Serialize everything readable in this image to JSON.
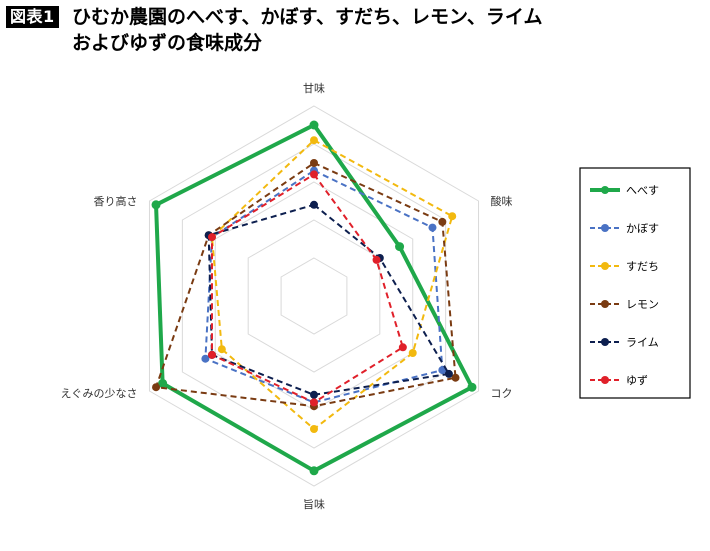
{
  "header": {
    "badge": "図表1",
    "title_line1": "ひむか農園のへべす、かぼす、すだち、レモン、ライム",
    "title_line2": "およびゆずの食味成分"
  },
  "chart_data": {
    "type": "radar",
    "axes": [
      "甘味",
      "酸味",
      "コク",
      "旨味",
      "えぐみの少なさ",
      "香り高さ"
    ],
    "rlim": [
      0,
      5
    ],
    "rings": 5,
    "grid": true,
    "legend_position": "right",
    "series": [
      {
        "name": "へべす",
        "color": "#1fa84a",
        "style": "solid",
        "values": [
          4.5,
          2.6,
          4.8,
          4.6,
          4.6,
          4.8
        ]
      },
      {
        "name": "かぼす",
        "color": "#4a72c4",
        "style": "dashed",
        "values": [
          3.3,
          3.6,
          3.9,
          2.8,
          3.3,
          3.1
        ]
      },
      {
        "name": "すだち",
        "color": "#f2b90f",
        "style": "dashed",
        "values": [
          4.1,
          4.2,
          3.0,
          3.5,
          2.8,
          3.1
        ]
      },
      {
        "name": "レモン",
        "color": "#7a3b12",
        "style": "dashed",
        "values": [
          3.5,
          3.9,
          4.3,
          2.9,
          4.8,
          3.2
        ]
      },
      {
        "name": "ライム",
        "color": "#0d1f4f",
        "style": "dashed",
        "values": [
          2.4,
          2.0,
          4.1,
          2.6,
          3.1,
          3.2
        ]
      },
      {
        "name": "ゆず",
        "color": "#e0202a",
        "style": "dashed",
        "values": [
          3.2,
          1.9,
          2.7,
          2.8,
          3.1,
          3.1
        ]
      }
    ]
  }
}
